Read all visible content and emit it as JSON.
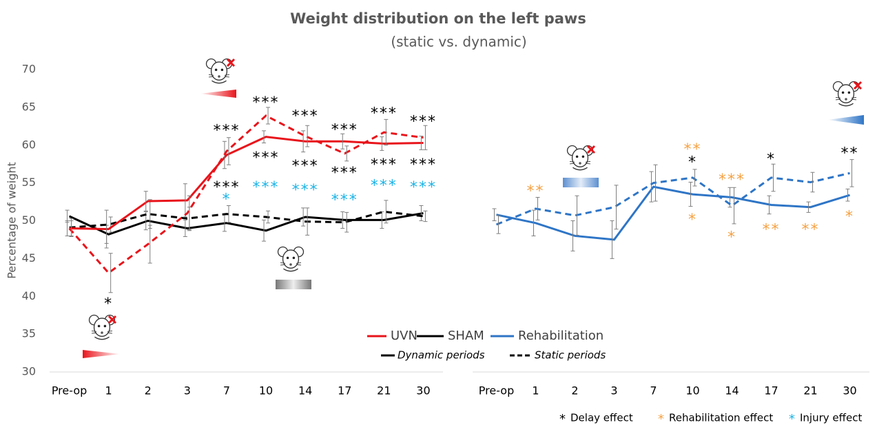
{
  "chart_data": {
    "type": "line",
    "title": "Weight distribution on the left paws",
    "subtitle": "(static vs. dynamic)",
    "y_label": "Percentage of weight",
    "categories": [
      "Pre-op",
      "1",
      "2",
      "3",
      "7",
      "10",
      "14",
      "17",
      "21",
      "30"
    ],
    "ylim": [
      30,
      70
    ],
    "yticks": [
      30,
      35,
      40,
      45,
      50,
      55,
      60,
      65,
      70
    ],
    "groups": [
      {
        "name": "UVN",
        "color": "#e8141b"
      },
      {
        "name": "SHAM",
        "color": "#000000"
      },
      {
        "name": "Rehabilitation",
        "color": "#2e75c6"
      }
    ],
    "styles": [
      {
        "name": "Dynamic periods",
        "dashed": false
      },
      {
        "name": "Static periods",
        "dashed": true
      }
    ],
    "series": [
      {
        "panel": 0,
        "color": "#000000",
        "dashed": false,
        "values": [
          50.6,
          48.2,
          50.0,
          49.0,
          49.7,
          48.7,
          50.5,
          50.1,
          50.1,
          51.0
        ],
        "errors": [
          0.8,
          1.2,
          1.2,
          1.1,
          1.1,
          1.4,
          1.2,
          1.1,
          1.1,
          1.0
        ]
      },
      {
        "panel": 0,
        "color": "#000000",
        "dashed": true,
        "values": [
          49.1,
          49.5,
          50.9,
          50.3,
          50.9,
          50.5,
          49.9,
          49.8,
          51.2,
          50.6
        ],
        "errors": [
          1.2,
          1.0,
          1.9,
          1.5,
          1.1,
          0.8,
          1.8,
          1.3,
          1.5,
          0.7
        ]
      },
      {
        "panel": 0,
        "color": "#e8141b",
        "dashed": false,
        "values": [
          49.0,
          48.9,
          52.6,
          52.7,
          58.7,
          61.1,
          60.5,
          60.5,
          60.2,
          60.3
        ],
        "errors": [
          1.0,
          2.5,
          1.3,
          2.2,
          1.8,
          0.8,
          1.4,
          1.0,
          0.9,
          0.9
        ]
      },
      {
        "panel": 0,
        "color": "#e8141b",
        "dashed": true,
        "values": [
          49.0,
          43.1,
          46.9,
          51.0,
          59.2,
          63.9,
          61.2,
          58.9,
          61.7,
          61.0
        ],
        "errors": [
          1.0,
          2.6,
          2.5,
          2.3,
          1.8,
          1.1,
          1.4,
          1.0,
          1.7,
          1.6
        ]
      },
      {
        "panel": 1,
        "color": "#2e75c6",
        "dashed": false,
        "values": [
          50.8,
          49.7,
          48.0,
          47.5,
          54.5,
          53.5,
          53.1,
          52.1,
          51.8,
          53.4
        ],
        "errors": [
          0.8,
          1.7,
          2.0,
          2.5,
          2.0,
          1.6,
          1.3,
          1.2,
          0.7,
          0.8
        ]
      },
      {
        "panel": 1,
        "color": "#2e75c6",
        "dashed": true,
        "values": [
          49.5,
          51.6,
          50.7,
          51.8,
          55.0,
          55.7,
          52.0,
          55.7,
          55.1,
          56.3
        ],
        "errors": [
          1.2,
          1.5,
          2.6,
          2.9,
          2.4,
          1.1,
          2.4,
          1.8,
          1.3,
          1.8
        ]
      }
    ],
    "effects": [
      {
        "symbol": "*",
        "name": "Delay effect",
        "color": "#000000"
      },
      {
        "symbol": "*",
        "name": "Rehabilitation effect",
        "color": "#f5a142"
      },
      {
        "symbol": "*",
        "name": "Injury effect",
        "color": "#1ab3e6"
      }
    ],
    "annotations": [
      {
        "panel": 0,
        "category": "1",
        "y": 39.4,
        "text": "*",
        "color": "#000000"
      },
      {
        "panel": 0,
        "category": "7",
        "y": 62.3,
        "text": "***",
        "color": "#000000"
      },
      {
        "panel": 0,
        "category": "7",
        "y": 54.8,
        "text": "***",
        "color": "#000000"
      },
      {
        "panel": 0,
        "category": "7",
        "y": 53.2,
        "text": "*",
        "color": "#1ab3e6"
      },
      {
        "panel": 0,
        "category": "10",
        "y": 66.0,
        "text": "***",
        "color": "#000000"
      },
      {
        "panel": 0,
        "category": "10",
        "y": 58.7,
        "text": "***",
        "color": "#000000"
      },
      {
        "panel": 0,
        "category": "10",
        "y": 54.8,
        "text": "***",
        "color": "#1ab3e6"
      },
      {
        "panel": 0,
        "category": "14",
        "y": 64.2,
        "text": "***",
        "color": "#000000"
      },
      {
        "panel": 0,
        "category": "14",
        "y": 57.6,
        "text": "***",
        "color": "#000000"
      },
      {
        "panel": 0,
        "category": "14",
        "y": 54.4,
        "text": "***",
        "color": "#1ab3e6"
      },
      {
        "panel": 0,
        "category": "17",
        "y": 62.4,
        "text": "***",
        "color": "#000000"
      },
      {
        "panel": 0,
        "category": "17",
        "y": 56.7,
        "text": "***",
        "color": "#000000"
      },
      {
        "panel": 0,
        "category": "17",
        "y": 53.1,
        "text": "***",
        "color": "#1ab3e6"
      },
      {
        "panel": 0,
        "category": "21",
        "y": 64.6,
        "text": "***",
        "color": "#000000"
      },
      {
        "panel": 0,
        "category": "21",
        "y": 57.8,
        "text": "***",
        "color": "#000000"
      },
      {
        "panel": 0,
        "category": "21",
        "y": 55.0,
        "text": "***",
        "color": "#1ab3e6"
      },
      {
        "panel": 0,
        "category": "30",
        "y": 63.5,
        "text": "***",
        "color": "#000000"
      },
      {
        "panel": 0,
        "category": "30",
        "y": 57.8,
        "text": "***",
        "color": "#000000"
      },
      {
        "panel": 0,
        "category": "30",
        "y": 54.8,
        "text": "***",
        "color": "#1ab3e6"
      },
      {
        "panel": 1,
        "category": "1",
        "y": 54.3,
        "text": "**",
        "color": "#f5a142"
      },
      {
        "panel": 1,
        "category": "10",
        "y": 59.8,
        "text": "**",
        "color": "#f5a142"
      },
      {
        "panel": 1,
        "category": "10",
        "y": 58.1,
        "text": "*",
        "color": "#000000"
      },
      {
        "panel": 1,
        "category": "10",
        "y": 50.5,
        "text": "*",
        "color": "#f5a142"
      },
      {
        "panel": 1,
        "category": "14",
        "y": 55.8,
        "text": "***",
        "color": "#f5a142"
      },
      {
        "panel": 1,
        "category": "14",
        "y": 48.2,
        "text": "*",
        "color": "#f5a142"
      },
      {
        "panel": 1,
        "category": "17",
        "y": 58.5,
        "text": "*",
        "color": "#000000"
      },
      {
        "panel": 1,
        "category": "17",
        "y": 49.2,
        "text": "**",
        "color": "#f5a142"
      },
      {
        "panel": 1,
        "category": "21",
        "y": 49.2,
        "text": "**",
        "color": "#f5a142"
      },
      {
        "panel": 1,
        "category": "30",
        "y": 59.3,
        "text": "**",
        "color": "#000000"
      },
      {
        "panel": 1,
        "category": "30",
        "y": 50.9,
        "text": "*",
        "color": "#f5a142"
      }
    ]
  }
}
